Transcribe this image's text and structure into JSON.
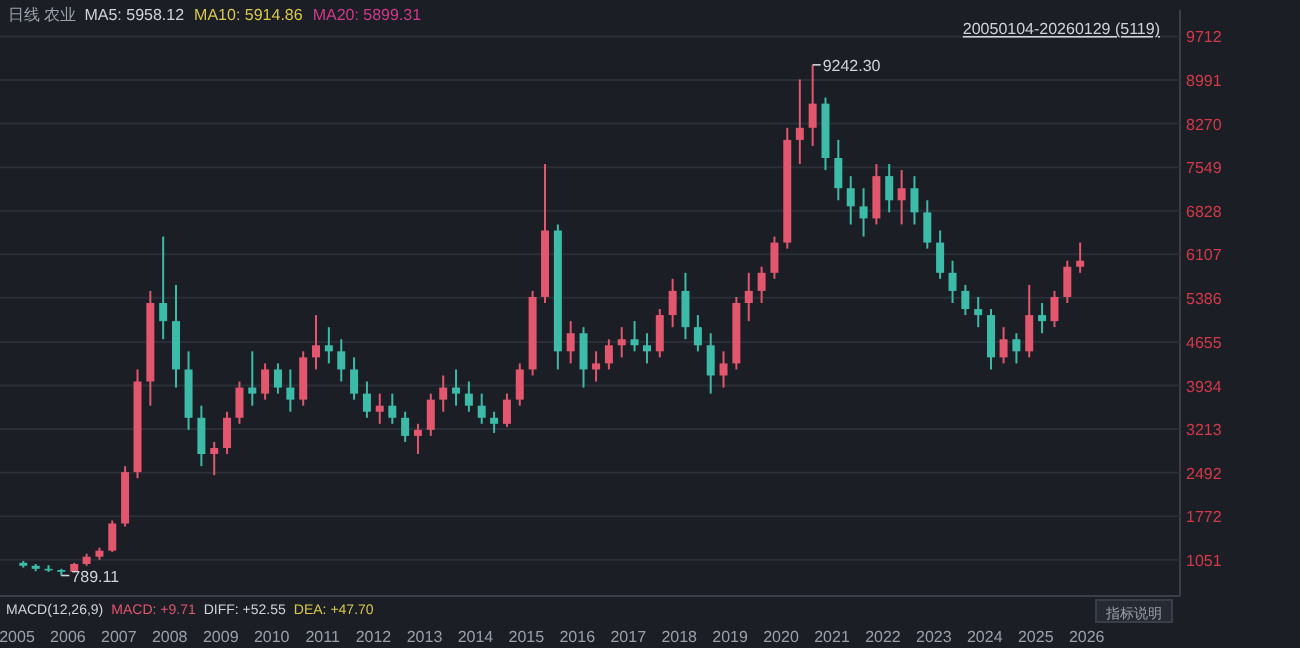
{
  "chart_data": {
    "type": "candlestick",
    "title": "日线 农业",
    "x": [
      "2005-02",
      "2005-05",
      "2005-08",
      "2005-11",
      "2006-02",
      "2006-05",
      "2006-08",
      "2006-11",
      "2007-02",
      "2007-05",
      "2007-08",
      "2007-11",
      "2008-02",
      "2008-05",
      "2008-08",
      "2008-11",
      "2009-02",
      "2009-05",
      "2009-08",
      "2009-11",
      "2010-02",
      "2010-05",
      "2010-08",
      "2010-11",
      "2011-02",
      "2011-05",
      "2011-08",
      "2011-11",
      "2012-02",
      "2012-05",
      "2012-08",
      "2012-11",
      "2013-02",
      "2013-05",
      "2013-08",
      "2013-11",
      "2014-02",
      "2014-05",
      "2014-08",
      "2014-11",
      "2015-02",
      "2015-05",
      "2015-08",
      "2015-11",
      "2016-02",
      "2016-05",
      "2016-08",
      "2016-11",
      "2017-02",
      "2017-05",
      "2017-08",
      "2017-11",
      "2018-02",
      "2018-05",
      "2018-08",
      "2018-11",
      "2019-02",
      "2019-05",
      "2019-08",
      "2019-11",
      "2020-02",
      "2020-05",
      "2020-08",
      "2020-11",
      "2021-02",
      "2021-05",
      "2021-08",
      "2021-11",
      "2022-02",
      "2022-05",
      "2022-08",
      "2022-11",
      "2023-02",
      "2023-05",
      "2023-08",
      "2023-11",
      "2024-02",
      "2024-05",
      "2024-08",
      "2024-11",
      "2025-02",
      "2025-05",
      "2025-08",
      "2025-11"
    ],
    "ohlc": [
      [
        1000,
        1030,
        920,
        950
      ],
      [
        950,
        980,
        860,
        900
      ],
      [
        900,
        960,
        850,
        880
      ],
      [
        880,
        900,
        789.11,
        850
      ],
      [
        850,
        1000,
        840,
        980
      ],
      [
        980,
        1150,
        950,
        1100
      ],
      [
        1100,
        1250,
        1050,
        1200
      ],
      [
        1200,
        1700,
        1180,
        1650
      ],
      [
        1650,
        2600,
        1600,
        2500
      ],
      [
        2500,
        4200,
        2400,
        4000
      ],
      [
        4000,
        5500,
        3600,
        5300
      ],
      [
        5300,
        6400,
        4700,
        5000
      ],
      [
        5000,
        5600,
        3900,
        4200
      ],
      [
        4200,
        4500,
        3200,
        3400
      ],
      [
        3400,
        3600,
        2600,
        2800
      ],
      [
        2800,
        3000,
        2450,
        2900
      ],
      [
        2900,
        3500,
        2800,
        3400
      ],
      [
        3400,
        4000,
        3300,
        3900
      ],
      [
        3900,
        4500,
        3600,
        3800
      ],
      [
        3800,
        4300,
        3700,
        4200
      ],
      [
        4200,
        4300,
        3800,
        3900
      ],
      [
        3900,
        4200,
        3500,
        3700
      ],
      [
        3700,
        4500,
        3600,
        4400
      ],
      [
        4400,
        5100,
        4200,
        4600
      ],
      [
        4600,
        4900,
        4300,
        4500
      ],
      [
        4500,
        4700,
        4000,
        4200
      ],
      [
        4200,
        4400,
        3700,
        3800
      ],
      [
        3800,
        4000,
        3400,
        3500
      ],
      [
        3500,
        3800,
        3300,
        3600
      ],
      [
        3600,
        3800,
        3300,
        3400
      ],
      [
        3400,
        3500,
        3000,
        3100
      ],
      [
        3100,
        3300,
        2800,
        3200
      ],
      [
        3200,
        3800,
        3100,
        3700
      ],
      [
        3700,
        4100,
        3500,
        3900
      ],
      [
        3900,
        4200,
        3600,
        3800
      ],
      [
        3800,
        4000,
        3500,
        3600
      ],
      [
        3600,
        3800,
        3300,
        3400
      ],
      [
        3400,
        3500,
        3150,
        3300
      ],
      [
        3300,
        3800,
        3250,
        3700
      ],
      [
        3700,
        4300,
        3600,
        4200
      ],
      [
        4200,
        5500,
        4100,
        5400
      ],
      [
        5400,
        7600,
        5300,
        6500
      ],
      [
        6500,
        6600,
        4200,
        4500
      ],
      [
        4500,
        5000,
        4300,
        4800
      ],
      [
        4800,
        4900,
        3900,
        4200
      ],
      [
        4200,
        4500,
        4000,
        4300
      ],
      [
        4300,
        4700,
        4200,
        4600
      ],
      [
        4600,
        4900,
        4400,
        4700
      ],
      [
        4700,
        5000,
        4500,
        4600
      ],
      [
        4600,
        4800,
        4300,
        4500
      ],
      [
        4500,
        5200,
        4400,
        5100
      ],
      [
        5100,
        5700,
        4900,
        5500
      ],
      [
        5500,
        5800,
        4700,
        4900
      ],
      [
        4900,
        5100,
        4500,
        4600
      ],
      [
        4600,
        4800,
        3800,
        4100
      ],
      [
        4100,
        4500,
        3900,
        4300
      ],
      [
        4300,
        5400,
        4200,
        5300
      ],
      [
        5300,
        5800,
        5000,
        5500
      ],
      [
        5500,
        5900,
        5300,
        5800
      ],
      [
        5800,
        6400,
        5700,
        6300
      ],
      [
        6300,
        8200,
        6200,
        8000
      ],
      [
        8000,
        9000,
        7600,
        8200
      ],
      [
        8200,
        9242.3,
        7900,
        8600
      ],
      [
        8600,
        8700,
        7500,
        7700
      ],
      [
        7700,
        8000,
        7000,
        7200
      ],
      [
        7200,
        7400,
        6600,
        6900
      ],
      [
        6900,
        7200,
        6400,
        6700
      ],
      [
        6700,
        7600,
        6600,
        7400
      ],
      [
        7400,
        7600,
        6800,
        7000
      ],
      [
        7000,
        7500,
        6600,
        7200
      ],
      [
        7200,
        7400,
        6600,
        6800
      ],
      [
        6800,
        7000,
        6200,
        6300
      ],
      [
        6300,
        6500,
        5700,
        5800
      ],
      [
        5800,
        6000,
        5300,
        5500
      ],
      [
        5500,
        5600,
        5100,
        5200
      ],
      [
        5200,
        5400,
        4900,
        5100
      ],
      [
        5100,
        5200,
        4200,
        4400
      ],
      [
        4400,
        4900,
        4300,
        4700
      ],
      [
        4700,
        4800,
        4300,
        4500
      ],
      [
        4500,
        5600,
        4400,
        5100
      ],
      [
        5100,
        5300,
        4800,
        5000
      ],
      [
        5000,
        5500,
        4900,
        5400
      ],
      [
        5400,
        6000,
        5300,
        5900
      ],
      [
        5900,
        6300,
        5800,
        6000
      ]
    ],
    "xlim": [
      "2004-09-01",
      "2027-11-01"
    ],
    "xticks": [
      {
        "value": "2005-01-01",
        "label": "2005"
      },
      {
        "value": "2006-01-01",
        "label": "2006"
      },
      {
        "value": "2007-01-01",
        "label": "2007"
      },
      {
        "value": "2008-01-01",
        "label": "2008"
      },
      {
        "value": "2009-01-01",
        "label": "2009"
      },
      {
        "value": "2010-01-01",
        "label": "2010"
      },
      {
        "value": "2011-01-01",
        "label": "2011"
      },
      {
        "value": "2012-01-01",
        "label": "2012"
      },
      {
        "value": "2013-01-01",
        "label": "2013"
      },
      {
        "value": "2014-01-01",
        "label": "2014"
      },
      {
        "value": "2015-01-01",
        "label": "2015"
      },
      {
        "value": "2016-01-01",
        "label": "2016"
      },
      {
        "value": "2017-01-01",
        "label": "2017"
      },
      {
        "value": "2018-01-01",
        "label": "2018"
      },
      {
        "value": "2019-01-01",
        "label": "2019"
      },
      {
        "value": "2020-01-01",
        "label": "2020"
      },
      {
        "value": "2021-01-01",
        "label": "2021"
      },
      {
        "value": "2022-01-01",
        "label": "2022"
      },
      {
        "value": "2023-01-01",
        "label": "2023"
      },
      {
        "value": "2024-01-01",
        "label": "2024"
      },
      {
        "value": "2025-01-01",
        "label": "2025"
      },
      {
        "value": "2026-01-01",
        "label": "2026"
      }
    ],
    "ylim": [
      450,
      10150
    ],
    "yticks": [
      1051,
      1772,
      2492,
      3213,
      3934,
      4655,
      5386,
      6107,
      6828,
      7549,
      8270,
      8991,
      9712
    ],
    "grid": "y",
    "annotations": [
      {
        "text": "9242.30",
        "x": "2020-08",
        "y": 9242.3
      },
      {
        "text": "789.11",
        "x": "2005-11",
        "y": 789.11
      },
      "MA5: 5958.12",
      "MA10: 5914.86",
      "MA20: 5899.31",
      "20050104-20260129 (5119)",
      "MACD(12,26,9)",
      "MACD: +9.71",
      "DIFF: +52.55",
      "DEA: +47.70",
      "指标说明"
    ]
  }
}
